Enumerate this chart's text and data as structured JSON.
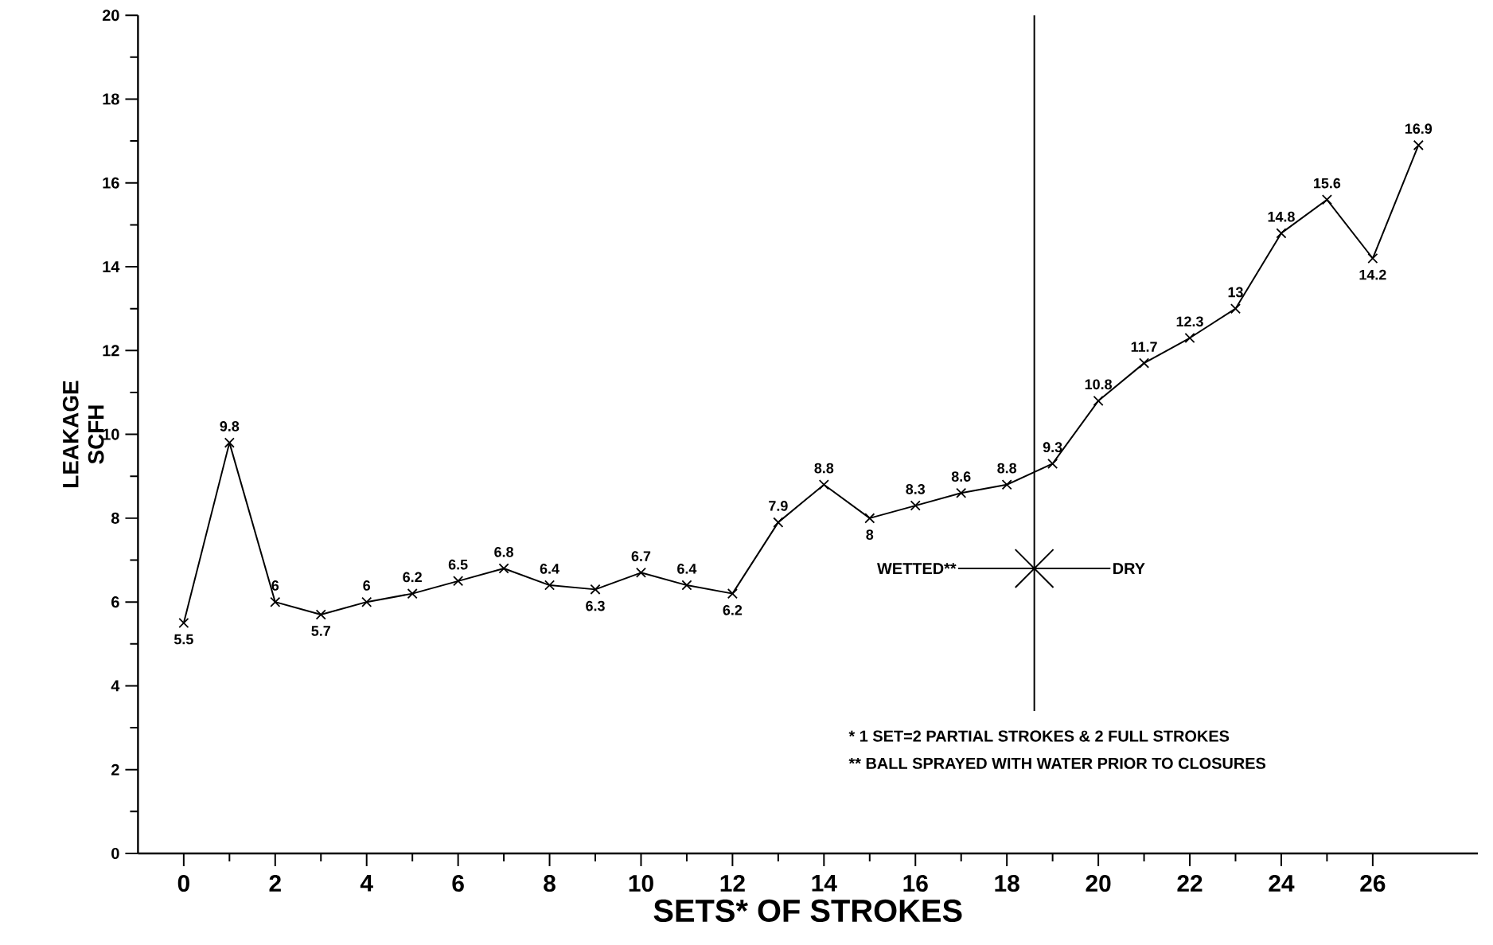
{
  "chart_data": {
    "type": "line",
    "xlabel": "SETS* OF STROKES",
    "ylabel": "LEAKAGE SCFH",
    "x": [
      0,
      1,
      2,
      3,
      4,
      5,
      6,
      7,
      8,
      9,
      10,
      11,
      12,
      13,
      14,
      15,
      16,
      17,
      18,
      19,
      20,
      21,
      22,
      23,
      24,
      25,
      26,
      27
    ],
    "values": [
      5.5,
      9.8,
      6,
      5.7,
      6,
      6.2,
      6.5,
      6.8,
      6.4,
      6.3,
      6.7,
      6.4,
      6.2,
      7.9,
      8.8,
      8,
      8.3,
      8.6,
      8.8,
      9.3,
      10.8,
      11.7,
      12.3,
      13,
      14.8,
      15.6,
      14.2,
      16.9
    ],
    "color": "#000000",
    "marker": "cross",
    "line_style": "solid",
    "data_labels": true,
    "grid": false,
    "xlim": [
      -1,
      28.3
    ],
    "xticks": [
      0,
      2,
      4,
      6,
      8,
      10,
      12,
      14,
      16,
      18,
      20,
      22,
      24,
      26
    ],
    "ylim": [
      0,
      20
    ],
    "yticks": [
      0,
      2,
      4,
      6,
      8,
      10,
      12,
      14,
      16,
      18,
      20
    ],
    "ref_lines": [
      {
        "axis": "x",
        "value": 18.6
      }
    ],
    "annotations": [
      "WETTED**",
      "DRY",
      "* 1 SET=2 PARTIAL STROKES & 2 FULL STROKES",
      "** BALL SPRAYED WITH WATER PRIOR TO CLOSURES"
    ]
  }
}
